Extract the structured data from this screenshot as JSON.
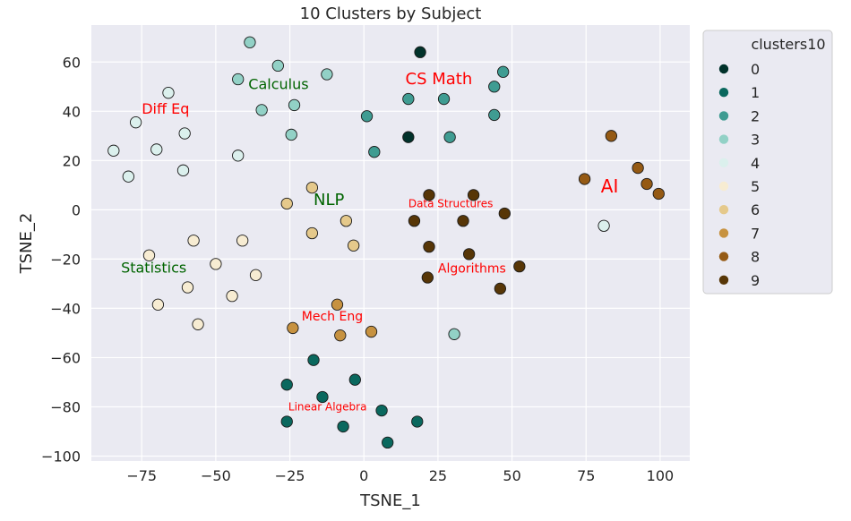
{
  "chart_data": {
    "type": "scatter",
    "title": "10 Clusters by Subject",
    "xlabel": "TSNE_1",
    "ylabel": "TSNE_2",
    "xlim": [
      -92,
      110
    ],
    "ylim": [
      -102,
      75
    ],
    "xticks": [
      -75,
      -50,
      -25,
      0,
      25,
      50,
      75,
      100
    ],
    "xtick_labels": [
      "−75",
      "−50",
      "−25",
      "0",
      "25",
      "50",
      "75",
      "100"
    ],
    "yticks": [
      -100,
      -80,
      -60,
      -40,
      -20,
      0,
      20,
      40,
      60
    ],
    "ytick_labels": [
      "−100",
      "−80",
      "−60",
      "−40",
      "−20",
      "0",
      "20",
      "40",
      "60"
    ],
    "grid": true,
    "legend": {
      "title": "clusters10",
      "placement": "outside-right-top",
      "entries": [
        "0",
        "1",
        "2",
        "3",
        "4",
        "5",
        "6",
        "7",
        "8",
        "9"
      ]
    },
    "colors": {
      "plot_background": "#eaeaf2",
      "grid": "#ffffff",
      "marker_edge": "#1a1a1a",
      "cluster_0": "#01322b",
      "cluster_1": "#0a685e",
      "cluster_2": "#3f9c92",
      "cluster_3": "#92d1c6",
      "cluster_4": "#dbf0ed",
      "cluster_5": "#f7ecd2",
      "cluster_6": "#e5c98b",
      "cluster_7": "#c79240",
      "cluster_8": "#955a14",
      "cluster_9": "#573607"
    },
    "series": [
      {
        "name": "0",
        "points": [
          [
            19,
            64
          ],
          [
            15,
            29.5
          ]
        ]
      },
      {
        "name": "1",
        "points": [
          [
            -17,
            -61
          ],
          [
            -26,
            -71
          ],
          [
            -3,
            -69
          ],
          [
            -14,
            -76
          ],
          [
            6,
            -81.5
          ],
          [
            -26,
            -86
          ],
          [
            18,
            -86
          ],
          [
            -7,
            -88
          ],
          [
            8,
            -94.5
          ]
        ]
      },
      {
        "name": "2",
        "points": [
          [
            47,
            56
          ],
          [
            15,
            45
          ],
          [
            27,
            45
          ],
          [
            44,
            50
          ],
          [
            1,
            38
          ],
          [
            44,
            38.5
          ],
          [
            29,
            29.5
          ],
          [
            3.5,
            23.5
          ]
        ]
      },
      {
        "name": "3",
        "points": [
          [
            -38.5,
            68
          ],
          [
            -29,
            58.5
          ],
          [
            -12.5,
            55
          ],
          [
            -42.5,
            53
          ],
          [
            -34.5,
            40.5
          ],
          [
            -23.5,
            42.5
          ],
          [
            -24.5,
            30.5
          ],
          [
            30.5,
            -50.5
          ]
        ]
      },
      {
        "name": "4",
        "points": [
          [
            -66,
            47.5
          ],
          [
            -77,
            35.5
          ],
          [
            -60.5,
            31
          ],
          [
            -84.5,
            24
          ],
          [
            -70,
            24.5
          ],
          [
            -61,
            16
          ],
          [
            -79.5,
            13.5
          ],
          [
            -42.5,
            22
          ],
          [
            81,
            -6.5
          ]
        ]
      },
      {
        "name": "5",
        "points": [
          [
            -57.5,
            -12.5
          ],
          [
            -41,
            -12.5
          ],
          [
            -72.5,
            -18.5
          ],
          [
            -50,
            -22
          ],
          [
            -36.5,
            -26.5
          ],
          [
            -59.5,
            -31.5
          ],
          [
            -44.5,
            -35
          ],
          [
            -69.5,
            -38.5
          ],
          [
            -56,
            -46.5
          ]
        ]
      },
      {
        "name": "6",
        "points": [
          [
            -17.5,
            9
          ],
          [
            -26,
            2.5
          ],
          [
            -6,
            -4.5
          ],
          [
            -17.5,
            -9.5
          ],
          [
            -3.5,
            -14.5
          ]
        ]
      },
      {
        "name": "7",
        "points": [
          [
            -9,
            -38.5
          ],
          [
            -24,
            -48
          ],
          [
            2.5,
            -49.5
          ],
          [
            -8,
            -51
          ]
        ]
      },
      {
        "name": "8",
        "points": [
          [
            83.5,
            30
          ],
          [
            92.5,
            17
          ],
          [
            74.5,
            12.5
          ],
          [
            95.5,
            10.5
          ],
          [
            99.5,
            6.5
          ]
        ]
      },
      {
        "name": "9",
        "points": [
          [
            22,
            6
          ],
          [
            37,
            6
          ],
          [
            17,
            -4.5
          ],
          [
            33.5,
            -4.5
          ],
          [
            47.5,
            -1.5
          ],
          [
            22,
            -15
          ],
          [
            35.5,
            -18
          ],
          [
            52.5,
            -23
          ],
          [
            21.5,
            -27.5
          ],
          [
            46,
            -32
          ]
        ]
      }
    ],
    "annotations": [
      {
        "text": "Calculus",
        "x": -39,
        "y": 49,
        "color": "#006400",
        "size": 16
      },
      {
        "text": "CS Math",
        "x": 14,
        "y": 51,
        "color": "#ff0000",
        "size": 18
      },
      {
        "text": "Diff Eq",
        "x": -75,
        "y": 39,
        "color": "#ff0000",
        "size": 16
      },
      {
        "text": "NLP",
        "x": -17,
        "y": 2,
        "color": "#006400",
        "size": 18
      },
      {
        "text": "Data Structures",
        "x": 15,
        "y": 1,
        "color": "#ff0000",
        "size": 12
      },
      {
        "text": "AI",
        "x": 80,
        "y": 7,
        "color": "#ff0000",
        "size": 20
      },
      {
        "text": "Statistics",
        "x": -82,
        "y": -25.5,
        "color": "#006400",
        "size": 16
      },
      {
        "text": "Algorithms",
        "x": 25,
        "y": -25.5,
        "color": "#ff0000",
        "size": 14
      },
      {
        "text": "Mech Eng",
        "x": -21,
        "y": -45,
        "color": "#ff0000",
        "size": 14
      },
      {
        "text": "Linear Algebra",
        "x": -25.5,
        "y": -81.5,
        "color": "#ff0000",
        "size": 12
      }
    ]
  }
}
